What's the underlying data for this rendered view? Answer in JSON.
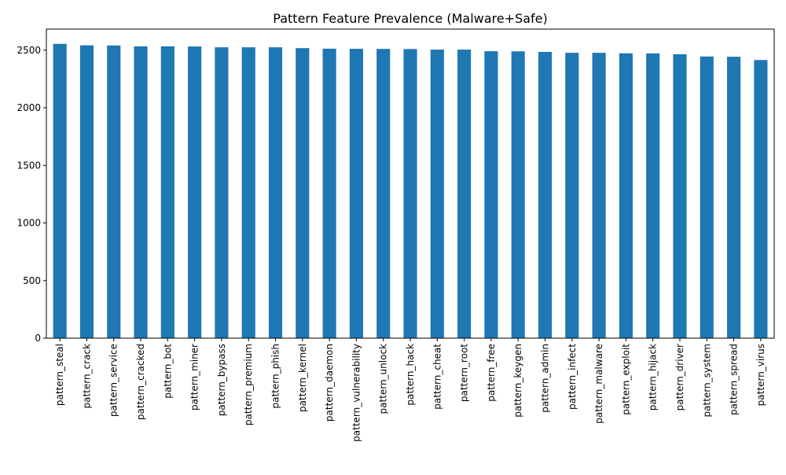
{
  "chart_data": {
    "type": "bar",
    "title": "Pattern Feature Prevalence (Malware+Safe)",
    "xlabel": "",
    "ylabel": "",
    "categories": [
      "pattern_steal",
      "pattern_crack",
      "pattern_service",
      "pattern_cracked",
      "pattern_bot",
      "pattern_miner",
      "pattern_bypass",
      "pattern_premium",
      "pattern_phish",
      "pattern_kernel",
      "pattern_daemon",
      "pattern_vulnerability",
      "pattern_unlock",
      "pattern_hack",
      "pattern_cheat",
      "pattern_root",
      "pattern_free",
      "pattern_keygen",
      "pattern_admin",
      "pattern_infect",
      "pattern_malware",
      "pattern_exploit",
      "pattern_hijack",
      "pattern_driver",
      "pattern_system",
      "pattern_spread",
      "pattern_virus"
    ],
    "values": [
      2555,
      2542,
      2541,
      2533,
      2533,
      2532,
      2525,
      2525,
      2525,
      2518,
      2513,
      2512,
      2511,
      2510,
      2505,
      2505,
      2491,
      2490,
      2485,
      2477,
      2477,
      2473,
      2472,
      2465,
      2445,
      2443,
      2415
    ],
    "ylim": [
      0,
      2683
    ],
    "yticks": [
      0,
      500,
      1000,
      1500,
      2000,
      2500
    ],
    "bar_color": "#1f77b4",
    "grid": false,
    "legend": "none"
  }
}
